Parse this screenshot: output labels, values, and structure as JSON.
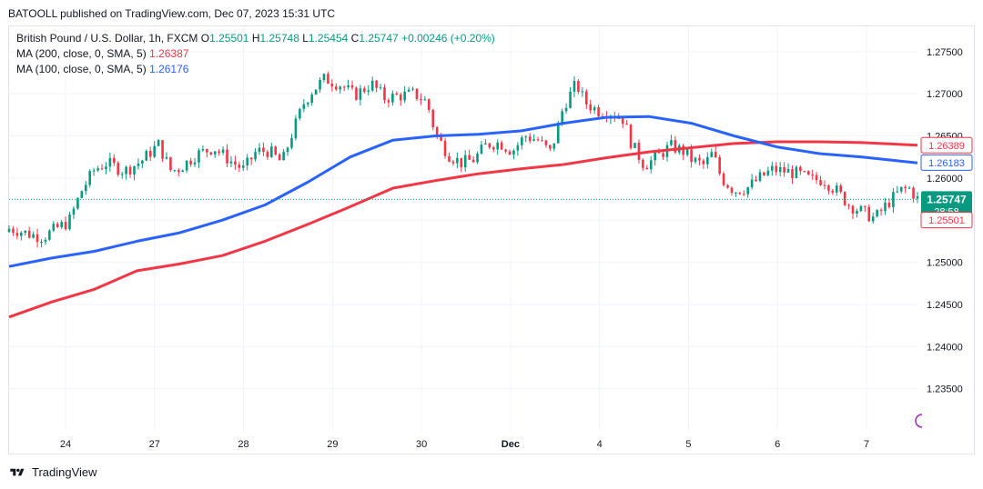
{
  "header": {
    "published_line": "BATOOLL published on TradingView.com, Dec 07, 2023 15:31 UTC"
  },
  "legend": {
    "symbol": "British Pound / U.S. Dollar, 1h, FXCM",
    "o_label": "O",
    "o_value": "1.25501",
    "h_label": "H",
    "h_value": "1.25748",
    "l_label": "L",
    "l_value": "1.25454",
    "c_label": "C",
    "c_value": "1.25747",
    "change": "+0.00246 (+0.20%)",
    "ma200_label": "MA (200, close, 0, SMA, 5)",
    "ma200_value": "1.26387",
    "ma100_label": "MA (100, close, 0, SMA, 5)",
    "ma100_value": "1.26176"
  },
  "badges": {
    "ma200": "1.26389",
    "ma100": "1.26183",
    "price": "1.25747",
    "countdown": "28:58",
    "open": "1.25501"
  },
  "footer": {
    "brand": "TradingView"
  },
  "colors": {
    "up": "#089981",
    "down": "#f23645",
    "ma200": "#f23645",
    "ma100": "#2962ff",
    "grid": "#f0f3fa",
    "axis_text": "#131722"
  },
  "chart_data": {
    "type": "candlestick",
    "title": "British Pound / U.S. Dollar, 1h, FXCM",
    "ylim": [
      1.23,
      1.278
    ],
    "y_ticks": [
      "1.23500",
      "1.24000",
      "1.24500",
      "1.25000",
      "1.25500",
      "1.26000",
      "1.26500",
      "1.27000",
      "1.27500"
    ],
    "x_ticks": [
      "24",
      "27",
      "28",
      "29",
      "30",
      "Dec",
      "4",
      "5",
      "6",
      "7"
    ],
    "grid": true,
    "close_path": [
      [
        0,
        1.254
      ],
      [
        0.02,
        1.2538
      ],
      [
        0.05,
        1.2533
      ],
      [
        0.08,
        1.253
      ],
      [
        0.11,
        1.254
      ],
      [
        0.14,
        1.2548
      ],
      [
        0.17,
        1.2585
      ],
      [
        0.2,
        1.261
      ],
      [
        0.23,
        1.2618
      ],
      [
        0.27,
        1.2608
      ],
      [
        0.31,
        1.262
      ],
      [
        0.35,
        1.264
      ],
      [
        0.38,
        1.2608
      ],
      [
        0.4,
        1.2612
      ],
      [
        0.44,
        1.2628
      ],
      [
        0.48,
        1.2636
      ],
      [
        0.52,
        1.262
      ],
      [
        0.55,
        1.261
      ],
      [
        0.58,
        1.2632
      ],
      [
        0.61,
        1.2632
      ],
      [
        0.64,
        1.2618
      ],
      [
        0.66,
        1.2648
      ],
      [
        0.69,
        1.2688
      ],
      [
        0.71,
        1.2703
      ],
      [
        0.74,
        1.2718
      ],
      [
        0.78,
        1.271
      ],
      [
        0.81,
        1.2698
      ],
      [
        0.85,
        1.2712
      ],
      [
        0.88,
        1.2695
      ],
      [
        0.92,
        1.2698
      ],
      [
        0.95,
        1.27
      ],
      [
        0.98,
        1.269
      ],
      [
        1.0,
        1.2652
      ],
      [
        1.03,
        1.2628
      ],
      [
        1.06,
        1.2618
      ],
      [
        1.09,
        1.2622
      ],
      [
        1.12,
        1.264
      ],
      [
        1.15,
        1.2642
      ],
      [
        1.18,
        1.2632
      ],
      [
        1.21,
        1.265
      ],
      [
        1.24,
        1.2645
      ],
      [
        1.27,
        1.263
      ],
      [
        1.3,
        1.2685
      ],
      [
        1.33,
        1.2712
      ],
      [
        1.35,
        1.269
      ],
      [
        1.38,
        1.268
      ],
      [
        1.41,
        1.2678
      ],
      [
        1.44,
        1.267
      ],
      [
        1.46,
        1.264
      ],
      [
        1.49,
        1.2615
      ],
      [
        1.52,
        1.2625
      ],
      [
        1.55,
        1.2638
      ],
      [
        1.58,
        1.2632
      ],
      [
        1.6,
        1.2622
      ],
      [
        1.63,
        1.2615
      ],
      [
        1.65,
        1.263
      ],
      [
        1.67,
        1.26
      ],
      [
        1.7,
        1.2585
      ],
      [
        1.73,
        1.2588
      ],
      [
        1.76,
        1.26
      ],
      [
        1.79,
        1.261
      ],
      [
        1.82,
        1.2608
      ],
      [
        1.85,
        1.2605
      ],
      [
        1.88,
        1.2598
      ],
      [
        1.91,
        1.2598
      ],
      [
        1.94,
        1.2585
      ],
      [
        1.97,
        1.2568
      ],
      [
        2.0,
        1.256
      ],
      [
        2.03,
        1.2552
      ],
      [
        2.06,
        1.257
      ],
      [
        2.09,
        1.2585
      ],
      [
        2.11,
        1.2588
      ],
      [
        2.13,
        1.2575
      ]
    ],
    "series": [
      {
        "name": "MA (200, close, 0, SMA, 5)",
        "points": [
          [
            0,
            1.2435
          ],
          [
            0.1,
            1.2453
          ],
          [
            0.2,
            1.2468
          ],
          [
            0.3,
            1.249
          ],
          [
            0.4,
            1.2498
          ],
          [
            0.5,
            1.2508
          ],
          [
            0.6,
            1.2525
          ],
          [
            0.7,
            1.2545
          ],
          [
            0.8,
            1.2566
          ],
          [
            0.9,
            1.2588
          ],
          [
            1.0,
            1.2597
          ],
          [
            1.1,
            1.2605
          ],
          [
            1.2,
            1.2611
          ],
          [
            1.3,
            1.2616
          ],
          [
            1.4,
            1.2624
          ],
          [
            1.5,
            1.2631
          ],
          [
            1.6,
            1.2636
          ],
          [
            1.7,
            1.2641
          ],
          [
            1.8,
            1.2643
          ],
          [
            1.9,
            1.2643
          ],
          [
            2.0,
            1.2642
          ],
          [
            2.13,
            1.2639
          ]
        ]
      },
      {
        "name": "MA (100, close, 0, SMA, 5)",
        "points": [
          [
            0,
            1.2495
          ],
          [
            0.1,
            1.2505
          ],
          [
            0.2,
            1.2513
          ],
          [
            0.3,
            1.2525
          ],
          [
            0.4,
            1.2535
          ],
          [
            0.5,
            1.255
          ],
          [
            0.6,
            1.2568
          ],
          [
            0.7,
            1.2595
          ],
          [
            0.8,
            1.2625
          ],
          [
            0.9,
            1.2645
          ],
          [
            1.0,
            1.265
          ],
          [
            1.1,
            1.2652
          ],
          [
            1.2,
            1.2656
          ],
          [
            1.3,
            1.2665
          ],
          [
            1.4,
            1.2672
          ],
          [
            1.5,
            1.2673
          ],
          [
            1.6,
            1.2665
          ],
          [
            1.7,
            1.265
          ],
          [
            1.8,
            1.2637
          ],
          [
            1.9,
            1.2629
          ],
          [
            2.0,
            1.2625
          ],
          [
            2.13,
            1.2618
          ]
        ]
      }
    ]
  }
}
